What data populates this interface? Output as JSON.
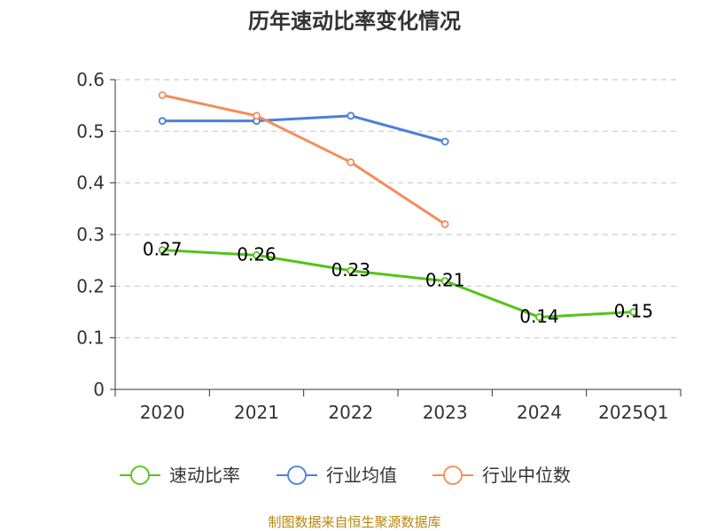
{
  "chart_data": {
    "type": "line",
    "title": "历年速动比率变化情况",
    "categories": [
      "2020",
      "2021",
      "2022",
      "2023",
      "2024",
      "2025Q1"
    ],
    "ylim": [
      0,
      0.6
    ],
    "yticks": [
      {
        "value": 0,
        "label": "0"
      },
      {
        "value": 0.1,
        "label": "0.1"
      },
      {
        "value": 0.2,
        "label": "0.2"
      },
      {
        "value": 0.3,
        "label": "0.3"
      },
      {
        "value": 0.4,
        "label": "0.4"
      },
      {
        "value": 0.5,
        "label": "0.5"
      },
      {
        "value": 0.6,
        "label": "0.6"
      }
    ],
    "grid": true,
    "legend_position": "bottom",
    "series": [
      {
        "name": "速动比率",
        "color": "#52c41a",
        "values": [
          0.27,
          0.26,
          0.23,
          0.21,
          0.14,
          0.15
        ],
        "data_labels": [
          "0.27",
          "0.26",
          "0.23",
          "0.21",
          "0.14",
          "0.15"
        ]
      },
      {
        "name": "行业均值",
        "color": "#4a7fdc",
        "values": [
          0.52,
          0.52,
          0.53,
          0.48,
          null,
          null
        ]
      },
      {
        "name": "行业中位数",
        "color": "#f58c5a",
        "values": [
          0.57,
          0.53,
          0.44,
          0.32,
          null,
          null
        ]
      }
    ]
  },
  "source": "制图数据来自恒生聚源数据库"
}
